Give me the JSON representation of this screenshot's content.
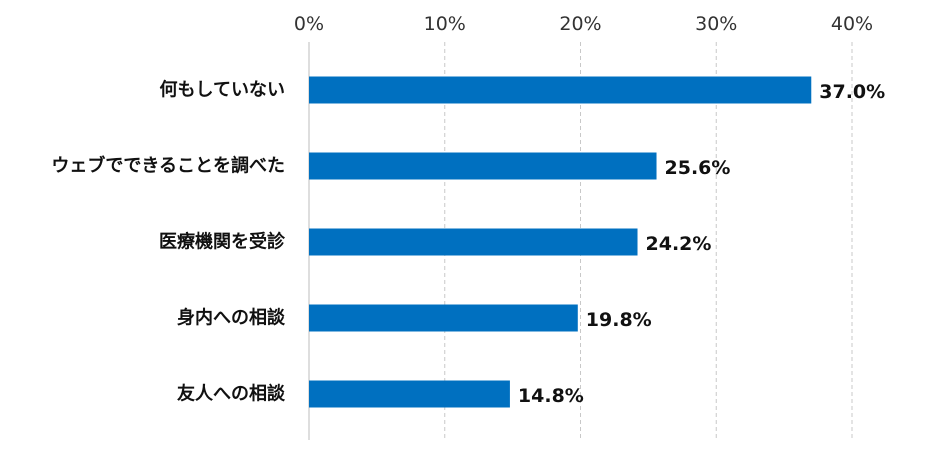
{
  "chart_data": {
    "type": "bar",
    "orientation": "horizontal",
    "title": "",
    "xlabel": "",
    "ylabel": "",
    "categories": [
      "何もしていない",
      "ウェブでできることを調べた",
      "医療機関を受診",
      "身内への相談",
      "友人への相談"
    ],
    "values": [
      37.0,
      25.6,
      24.2,
      19.8,
      14.8
    ],
    "value_labels": [
      "37.0%",
      "25.6%",
      "24.2%",
      "19.8%",
      "14.8%"
    ],
    "xlim": [
      0,
      40
    ],
    "ticks": [
      0,
      10,
      20,
      30,
      40
    ],
    "tick_labels": [
      "0%",
      "10%",
      "20%",
      "30%",
      "40%"
    ],
    "tick_position": "top",
    "grid": true,
    "legend": "none",
    "bar_color": "#0070C0"
  }
}
